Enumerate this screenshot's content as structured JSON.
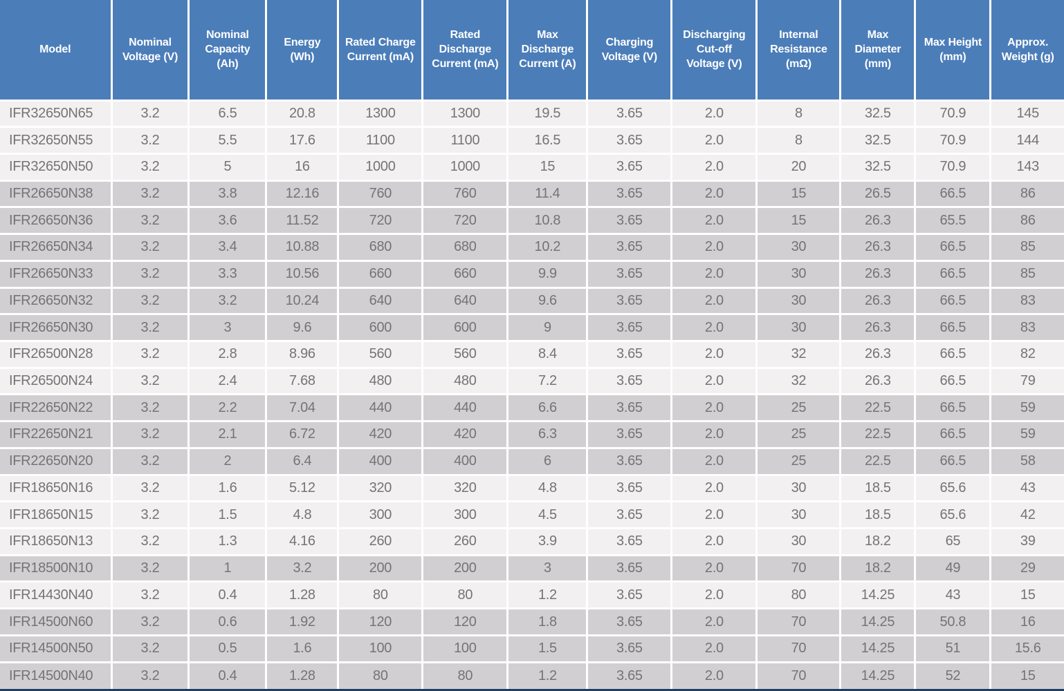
{
  "colors": {
    "header_bg": "#4b7db9",
    "header_text": "#ffffff",
    "body_text": "#757375",
    "light_row": "#f2f0f1",
    "gray_row": "#d2cfd2",
    "grid_line": "#ffffff",
    "bottom_border": "#1f3c61"
  },
  "chart_data": {
    "type": "table",
    "columns": [
      "Model",
      "Nominal Voltage (V)",
      "Nominal Capacity (Ah)",
      "Energy (Wh)",
      "Rated Charge Current (mA)",
      "Rated Discharge Current (mA)",
      "Max Discharge Current (A)",
      "Charging Voltage (V)",
      "Discharging Cut-off Voltage (V)",
      "Internal Resistance (mΩ)",
      "Max Diameter (mm)",
      "Max Height (mm)",
      "Approx. Weight (g)"
    ],
    "rows": [
      {
        "shade": "light",
        "cells": [
          "IFR32650N65",
          "3.2",
          "6.5",
          "20.8",
          "1300",
          "1300",
          "19.5",
          "3.65",
          "2.0",
          "8",
          "32.5",
          "70.9",
          "145"
        ]
      },
      {
        "shade": "light",
        "cells": [
          "IFR32650N55",
          "3.2",
          "5.5",
          "17.6",
          "1100",
          "1100",
          "16.5",
          "3.65",
          "2.0",
          "8",
          "32.5",
          "70.9",
          "144"
        ]
      },
      {
        "shade": "light",
        "cells": [
          "IFR32650N50",
          "3.2",
          "5",
          "16",
          "1000",
          "1000",
          "15",
          "3.65",
          "2.0",
          "20",
          "32.5",
          "70.9",
          "143"
        ]
      },
      {
        "shade": "gray",
        "cells": [
          "IFR26650N38",
          "3.2",
          "3.8",
          "12.16",
          "760",
          "760",
          "11.4",
          "3.65",
          "2.0",
          "15",
          "26.5",
          "66.5",
          "86"
        ]
      },
      {
        "shade": "gray",
        "cells": [
          "IFR26650N36",
          "3.2",
          "3.6",
          "11.52",
          "720",
          "720",
          "10.8",
          "3.65",
          "2.0",
          "15",
          "26.3",
          "65.5",
          "86"
        ]
      },
      {
        "shade": "gray",
        "cells": [
          "IFR26650N34",
          "3.2",
          "3.4",
          "10.88",
          "680",
          "680",
          "10.2",
          "3.65",
          "2.0",
          "30",
          "26.3",
          "66.5",
          "85"
        ]
      },
      {
        "shade": "gray",
        "cells": [
          "IFR26650N33",
          "3.2",
          "3.3",
          "10.56",
          "660",
          "660",
          "9.9",
          "3.65",
          "2.0",
          "30",
          "26.3",
          "66.5",
          "85"
        ]
      },
      {
        "shade": "gray",
        "cells": [
          "IFR26650N32",
          "3.2",
          "3.2",
          "10.24",
          "640",
          "640",
          "9.6",
          "3.65",
          "2.0",
          "30",
          "26.3",
          "66.5",
          "83"
        ]
      },
      {
        "shade": "gray",
        "cells": [
          "IFR26650N30",
          "3.2",
          "3",
          "9.6",
          "600",
          "600",
          "9",
          "3.65",
          "2.0",
          "30",
          "26.3",
          "66.5",
          "83"
        ]
      },
      {
        "shade": "light",
        "cells": [
          "IFR26500N28",
          "3.2",
          "2.8",
          "8.96",
          "560",
          "560",
          "8.4",
          "3.65",
          "2.0",
          "32",
          "26.3",
          "66.5",
          "82"
        ]
      },
      {
        "shade": "light",
        "cells": [
          "IFR26500N24",
          "3.2",
          "2.4",
          "7.68",
          "480",
          "480",
          "7.2",
          "3.65",
          "2.0",
          "32",
          "26.3",
          "66.5",
          "79"
        ]
      },
      {
        "shade": "gray",
        "cells": [
          "IFR22650N22",
          "3.2",
          "2.2",
          "7.04",
          "440",
          "440",
          "6.6",
          "3.65",
          "2.0",
          "25",
          "22.5",
          "66.5",
          "59"
        ]
      },
      {
        "shade": "gray",
        "cells": [
          "IFR22650N21",
          "3.2",
          "2.1",
          "6.72",
          "420",
          "420",
          "6.3",
          "3.65",
          "2.0",
          "25",
          "22.5",
          "66.5",
          "59"
        ]
      },
      {
        "shade": "gray",
        "cells": [
          "IFR22650N20",
          "3.2",
          "2",
          "6.4",
          "400",
          "400",
          "6",
          "3.65",
          "2.0",
          "25",
          "22.5",
          "66.5",
          "58"
        ]
      },
      {
        "shade": "light",
        "cells": [
          "IFR18650N16",
          "3.2",
          "1.6",
          "5.12",
          "320",
          "320",
          "4.8",
          "3.65",
          "2.0",
          "30",
          "18.5",
          "65.6",
          "43"
        ]
      },
      {
        "shade": "light",
        "cells": [
          "IFR18650N15",
          "3.2",
          "1.5",
          "4.8",
          "300",
          "300",
          "4.5",
          "3.65",
          "2.0",
          "30",
          "18.5",
          "65.6",
          "42"
        ]
      },
      {
        "shade": "light",
        "cells": [
          "IFR18650N13",
          "3.2",
          "1.3",
          "4.16",
          "260",
          "260",
          "3.9",
          "3.65",
          "2.0",
          "30",
          "18.2",
          "65",
          "39"
        ]
      },
      {
        "shade": "gray",
        "cells": [
          "IFR18500N10",
          "3.2",
          "1",
          "3.2",
          "200",
          "200",
          "3",
          "3.65",
          "2.0",
          "70",
          "18.2",
          "49",
          "29"
        ]
      },
      {
        "shade": "light",
        "cells": [
          "IFR14430N40",
          "3.2",
          "0.4",
          "1.28",
          "80",
          "80",
          "1.2",
          "3.65",
          "2.0",
          "80",
          "14.25",
          "43",
          "15"
        ]
      },
      {
        "shade": "gray",
        "cells": [
          "IFR14500N60",
          "3.2",
          "0.6",
          "1.92",
          "120",
          "120",
          "1.8",
          "3.65",
          "2.0",
          "70",
          "14.25",
          "50.8",
          "16"
        ]
      },
      {
        "shade": "gray",
        "cells": [
          "IFR14500N50",
          "3.2",
          "0.5",
          "1.6",
          "100",
          "100",
          "1.5",
          "3.65",
          "2.0",
          "70",
          "14.25",
          "51",
          "15.6"
        ]
      },
      {
        "shade": "gray",
        "cells": [
          "IFR14500N40",
          "3.2",
          "0.4",
          "1.28",
          "80",
          "80",
          "1.2",
          "3.65",
          "2.0",
          "70",
          "14.25",
          "52",
          "15"
        ]
      }
    ]
  }
}
